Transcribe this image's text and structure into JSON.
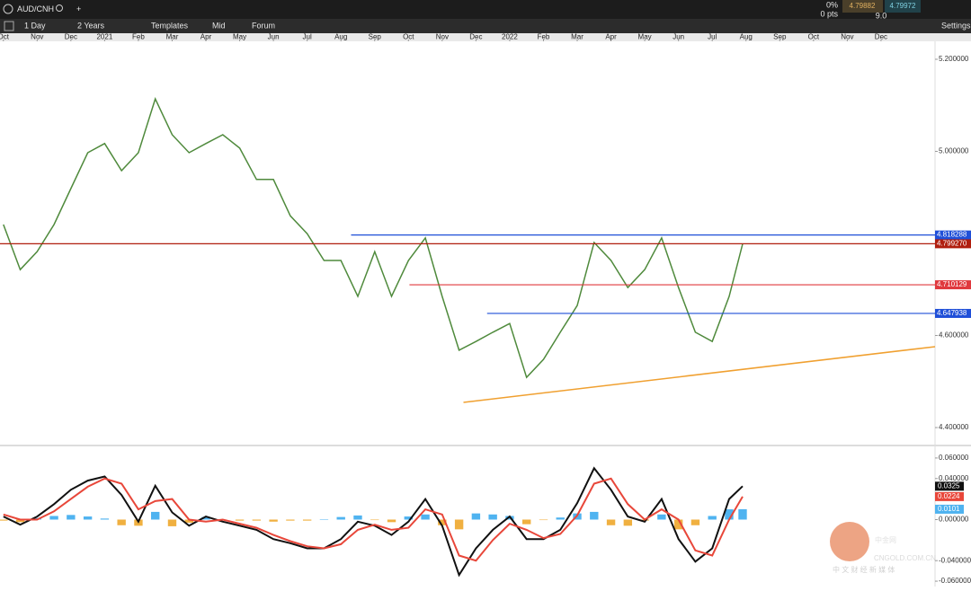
{
  "toolbar": {
    "symbol": "AUD/CNH",
    "interval": "1 Day",
    "range": "2 Years",
    "templates": "Templates",
    "price_type": "Mid",
    "forum": "Forum",
    "settings": "Settings"
  },
  "quote": {
    "change_pct": "0%",
    "change_pts": "0 pts",
    "bid": "4.79882",
    "ask": "4.79972",
    "spread": "9.0"
  },
  "watermark": {
    "name": "中金网",
    "site": "CNGOLD.COM.CN",
    "slogan": "中 文 财 经 新 媒 体"
  },
  "chart_data": [
    {
      "type": "line",
      "xlim": [
        -0.1,
        27.6
      ],
      "ylim": [
        4.363,
        5.239
      ],
      "xticks": [
        {
          "value": 0,
          "label": "Oct"
        },
        {
          "value": 1,
          "label": "Nov"
        },
        {
          "value": 2,
          "label": "Dec"
        },
        {
          "value": 3,
          "label": "2021"
        },
        {
          "value": 4,
          "label": "Feb"
        },
        {
          "value": 5,
          "label": "Mar"
        },
        {
          "value": 6,
          "label": "Apr"
        },
        {
          "value": 7,
          "label": "May"
        },
        {
          "value": 8,
          "label": "Jun"
        },
        {
          "value": 9,
          "label": "Jul"
        },
        {
          "value": 10,
          "label": "Aug"
        },
        {
          "value": 11,
          "label": "Sep"
        },
        {
          "value": 12,
          "label": "Oct"
        },
        {
          "value": 13,
          "label": "Nov"
        },
        {
          "value": 14,
          "label": "Dec"
        },
        {
          "value": 15,
          "label": "2022"
        },
        {
          "value": 16,
          "label": "Feb"
        },
        {
          "value": 17,
          "label": "Mar"
        },
        {
          "value": 18,
          "label": "Apr"
        },
        {
          "value": 19,
          "label": "May"
        },
        {
          "value": 20,
          "label": "Jun"
        },
        {
          "value": 21,
          "label": "Jul"
        },
        {
          "value": 22,
          "label": "Aug"
        },
        {
          "value": 23,
          "label": "Sep"
        },
        {
          "value": 24,
          "label": "Oct"
        },
        {
          "value": 25,
          "label": "Nov"
        },
        {
          "value": 26,
          "label": "Dec"
        }
      ],
      "yticks": [
        {
          "value": 5.2,
          "label": "5.200000"
        },
        {
          "value": 5.0,
          "label": "5.000000"
        },
        {
          "value": 4.6,
          "label": "4.600000"
        },
        {
          "value": 4.4,
          "label": "4.400000"
        }
      ],
      "series": [
        {
          "color": "#4f8a3c",
          "x": [
            0,
            0.5,
            1,
            1.5,
            2,
            2.5,
            3,
            3.5,
            4,
            4.5,
            5,
            5.5,
            6,
            6.5,
            7,
            7.5,
            8,
            8.5,
            9,
            9.5,
            10,
            10.5,
            11,
            11.5,
            12,
            12.5,
            13,
            13.5,
            14,
            14.5,
            15,
            15.5,
            16,
            16.5,
            17,
            17.5,
            18,
            18.5,
            19,
            19.5,
            20,
            20.5,
            21,
            21.5,
            21.9
          ],
          "values": [
            4.841,
            4.743,
            4.782,
            4.841,
            4.919,
            4.997,
            5.017,
            4.958,
            4.997,
            5.114,
            5.036,
            4.997,
            5.017,
            5.036,
            5.007,
            4.939,
            4.939,
            4.86,
            4.821,
            4.763,
            4.763,
            4.685,
            4.782,
            4.685,
            4.763,
            4.812,
            4.685,
            4.568,
            4.587,
            4.607,
            4.626,
            4.509,
            4.548,
            4.607,
            4.665,
            4.802,
            4.763,
            4.704,
            4.743,
            4.812,
            4.704,
            4.607,
            4.587,
            4.685,
            4.799
          ]
        }
      ],
      "levels": [
        {
          "value": 4.818288,
          "label": "4.818288",
          "color": "#1f4fd8",
          "x": [
            10.3,
            27.6
          ]
        },
        {
          "value": 4.79927,
          "label": "4.799270",
          "color": "#b01e0e",
          "x": [
            -0.1,
            27.6
          ]
        },
        {
          "value": 4.710129,
          "label": "4.710129",
          "color": "#e0393e",
          "x": [
            12.03,
            27.6
          ]
        },
        {
          "value": 4.647938,
          "label": "4.647938",
          "color": "#1f4fd8",
          "x": [
            14.33,
            27.6
          ]
        }
      ],
      "trendline": {
        "color": "#f0a030",
        "x": [
          13.63,
          27.6
        ],
        "values": [
          4.4546,
          4.5756
        ]
      }
    },
    {
      "type": "macd",
      "xlim": [
        -0.1,
        27.6
      ],
      "ylim": [
        -0.0652,
        0.0713
      ],
      "yticks": [
        {
          "value": 0.06,
          "label": "0.060000"
        },
        {
          "value": 0.04,
          "label": "0.040000"
        },
        {
          "value": 0,
          "label": "0.000000"
        },
        {
          "value": -0.04,
          "label": "-0.040000"
        },
        {
          "value": -0.06,
          "label": "-0.060000"
        }
      ],
      "x": [
        0,
        0.5,
        1,
        1.5,
        2,
        2.5,
        3,
        3.5,
        4,
        4.5,
        5,
        5.5,
        6,
        6.5,
        7,
        7.5,
        8,
        8.5,
        9,
        9.5,
        10,
        10.5,
        11,
        11.5,
        12,
        12.5,
        13,
        13.5,
        14,
        14.5,
        15,
        15.5,
        16,
        16.5,
        17,
        17.5,
        18,
        18.5,
        19,
        19.5,
        20,
        20.5,
        21,
        21.5,
        21.9
      ],
      "series": [
        {
          "kind": "line",
          "color": "#111111",
          "values": [
            0.003,
            -0.005,
            0.003,
            0.015,
            0.029,
            0.038,
            0.042,
            0.024,
            -0.002,
            0.033,
            0.007,
            -0.006,
            0.003,
            -0.002,
            -0.006,
            -0.01,
            -0.019,
            -0.023,
            -0.028,
            -0.028,
            -0.019,
            -0.002,
            -0.006,
            -0.015,
            -0.002,
            0.02,
            -0.006,
            -0.054,
            -0.028,
            -0.01,
            0.003,
            -0.019,
            -0.019,
            -0.01,
            0.016,
            0.05,
            0.029,
            0.003,
            -0.002,
            0.02,
            -0.019,
            -0.041,
            -0.028,
            0.02,
            0.0325
          ]
        },
        {
          "kind": "line",
          "color": "#e8473a",
          "values": [
            0.005,
            0.0,
            0.0,
            0.008,
            0.02,
            0.032,
            0.04,
            0.035,
            0.01,
            0.018,
            0.02,
            0.0,
            -0.002,
            0.0,
            -0.004,
            -0.008,
            -0.015,
            -0.021,
            -0.026,
            -0.028,
            -0.024,
            -0.01,
            -0.005,
            -0.01,
            -0.008,
            0.01,
            0.005,
            -0.035,
            -0.04,
            -0.02,
            -0.004,
            -0.01,
            -0.018,
            -0.014,
            0.004,
            0.035,
            0.04,
            0.015,
            0.0,
            0.01,
            0.0,
            -0.03,
            -0.035,
            0.0,
            0.0224
          ]
        },
        {
          "kind": "bar",
          "color": "#4fb3f0",
          "negative_color": "#f0b040",
          "values": [
            -0.001,
            -0.0025,
            0.0015,
            0.0035,
            0.0045,
            0.003,
            0.001,
            -0.0055,
            -0.006,
            0.0075,
            -0.0065,
            -0.003,
            0.0025,
            -0.001,
            -0.001,
            -0.001,
            -0.002,
            -0.001,
            -0.001,
            0.0,
            0.0025,
            0.004,
            -0.0005,
            -0.0025,
            0.003,
            0.005,
            -0.0055,
            -0.0095,
            0.006,
            0.005,
            0.0035,
            -0.0045,
            -0.0005,
            0.002,
            0.006,
            0.0075,
            -0.0055,
            -0.006,
            -0.001,
            0.005,
            -0.0095,
            -0.0055,
            0.0035,
            0.01,
            0.0101
          ]
        }
      ]
    }
  ]
}
